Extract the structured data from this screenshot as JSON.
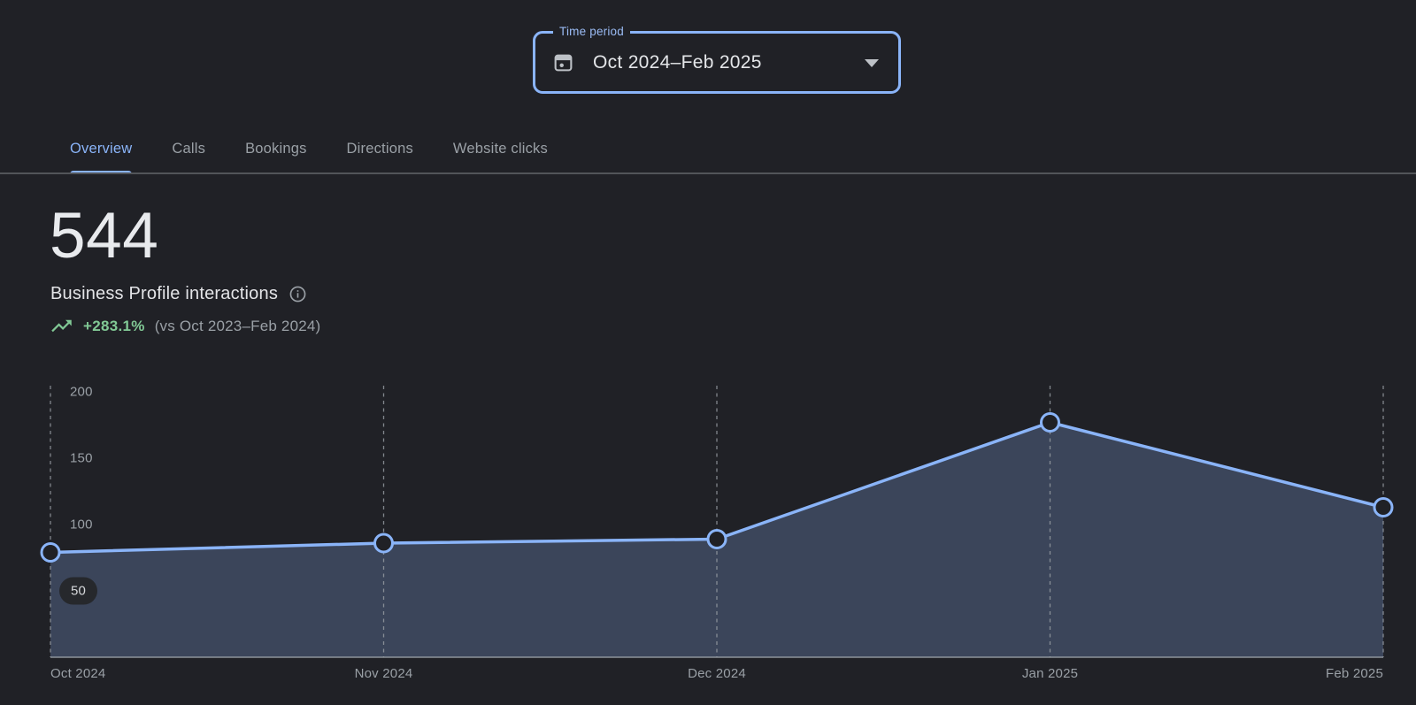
{
  "colors": {
    "background": "#202126",
    "accent_blue": "#8ab4f8",
    "positive_green": "#81c995",
    "text_primary": "#e8eaed",
    "text_secondary": "#9aa0a6",
    "chart_area_fill": "rgba(138,180,248,0.25)",
    "tab_divider": "#525559"
  },
  "time_period_field": {
    "label": "Time period",
    "value": "Oct 2024–Feb 2025"
  },
  "tabs": [
    {
      "label": "Overview",
      "selected": true
    },
    {
      "label": "Calls",
      "selected": false
    },
    {
      "label": "Bookings",
      "selected": false
    },
    {
      "label": "Directions",
      "selected": false
    },
    {
      "label": "Website clicks",
      "selected": false
    }
  ],
  "metric": {
    "value": "544",
    "label": "Business Profile interactions",
    "trend_percent": "+283.1%",
    "trend_comparison": "(vs Oct 2023–Feb 2024)"
  },
  "chart_data": {
    "type": "area",
    "categories": [
      "Oct 2024",
      "Nov 2024",
      "Dec 2024",
      "Jan 2025",
      "Feb 2025"
    ],
    "values": [
      79,
      86,
      89,
      177,
      113
    ],
    "yticks": [
      50,
      100,
      150,
      200
    ],
    "ylim": [
      0,
      200
    ],
    "ytick_pill": 50,
    "grid": "dashed vertical line at each category",
    "legend": "none",
    "line_color": "#8ab4f8",
    "fill_color": "rgba(138,180,248,0.25)"
  }
}
